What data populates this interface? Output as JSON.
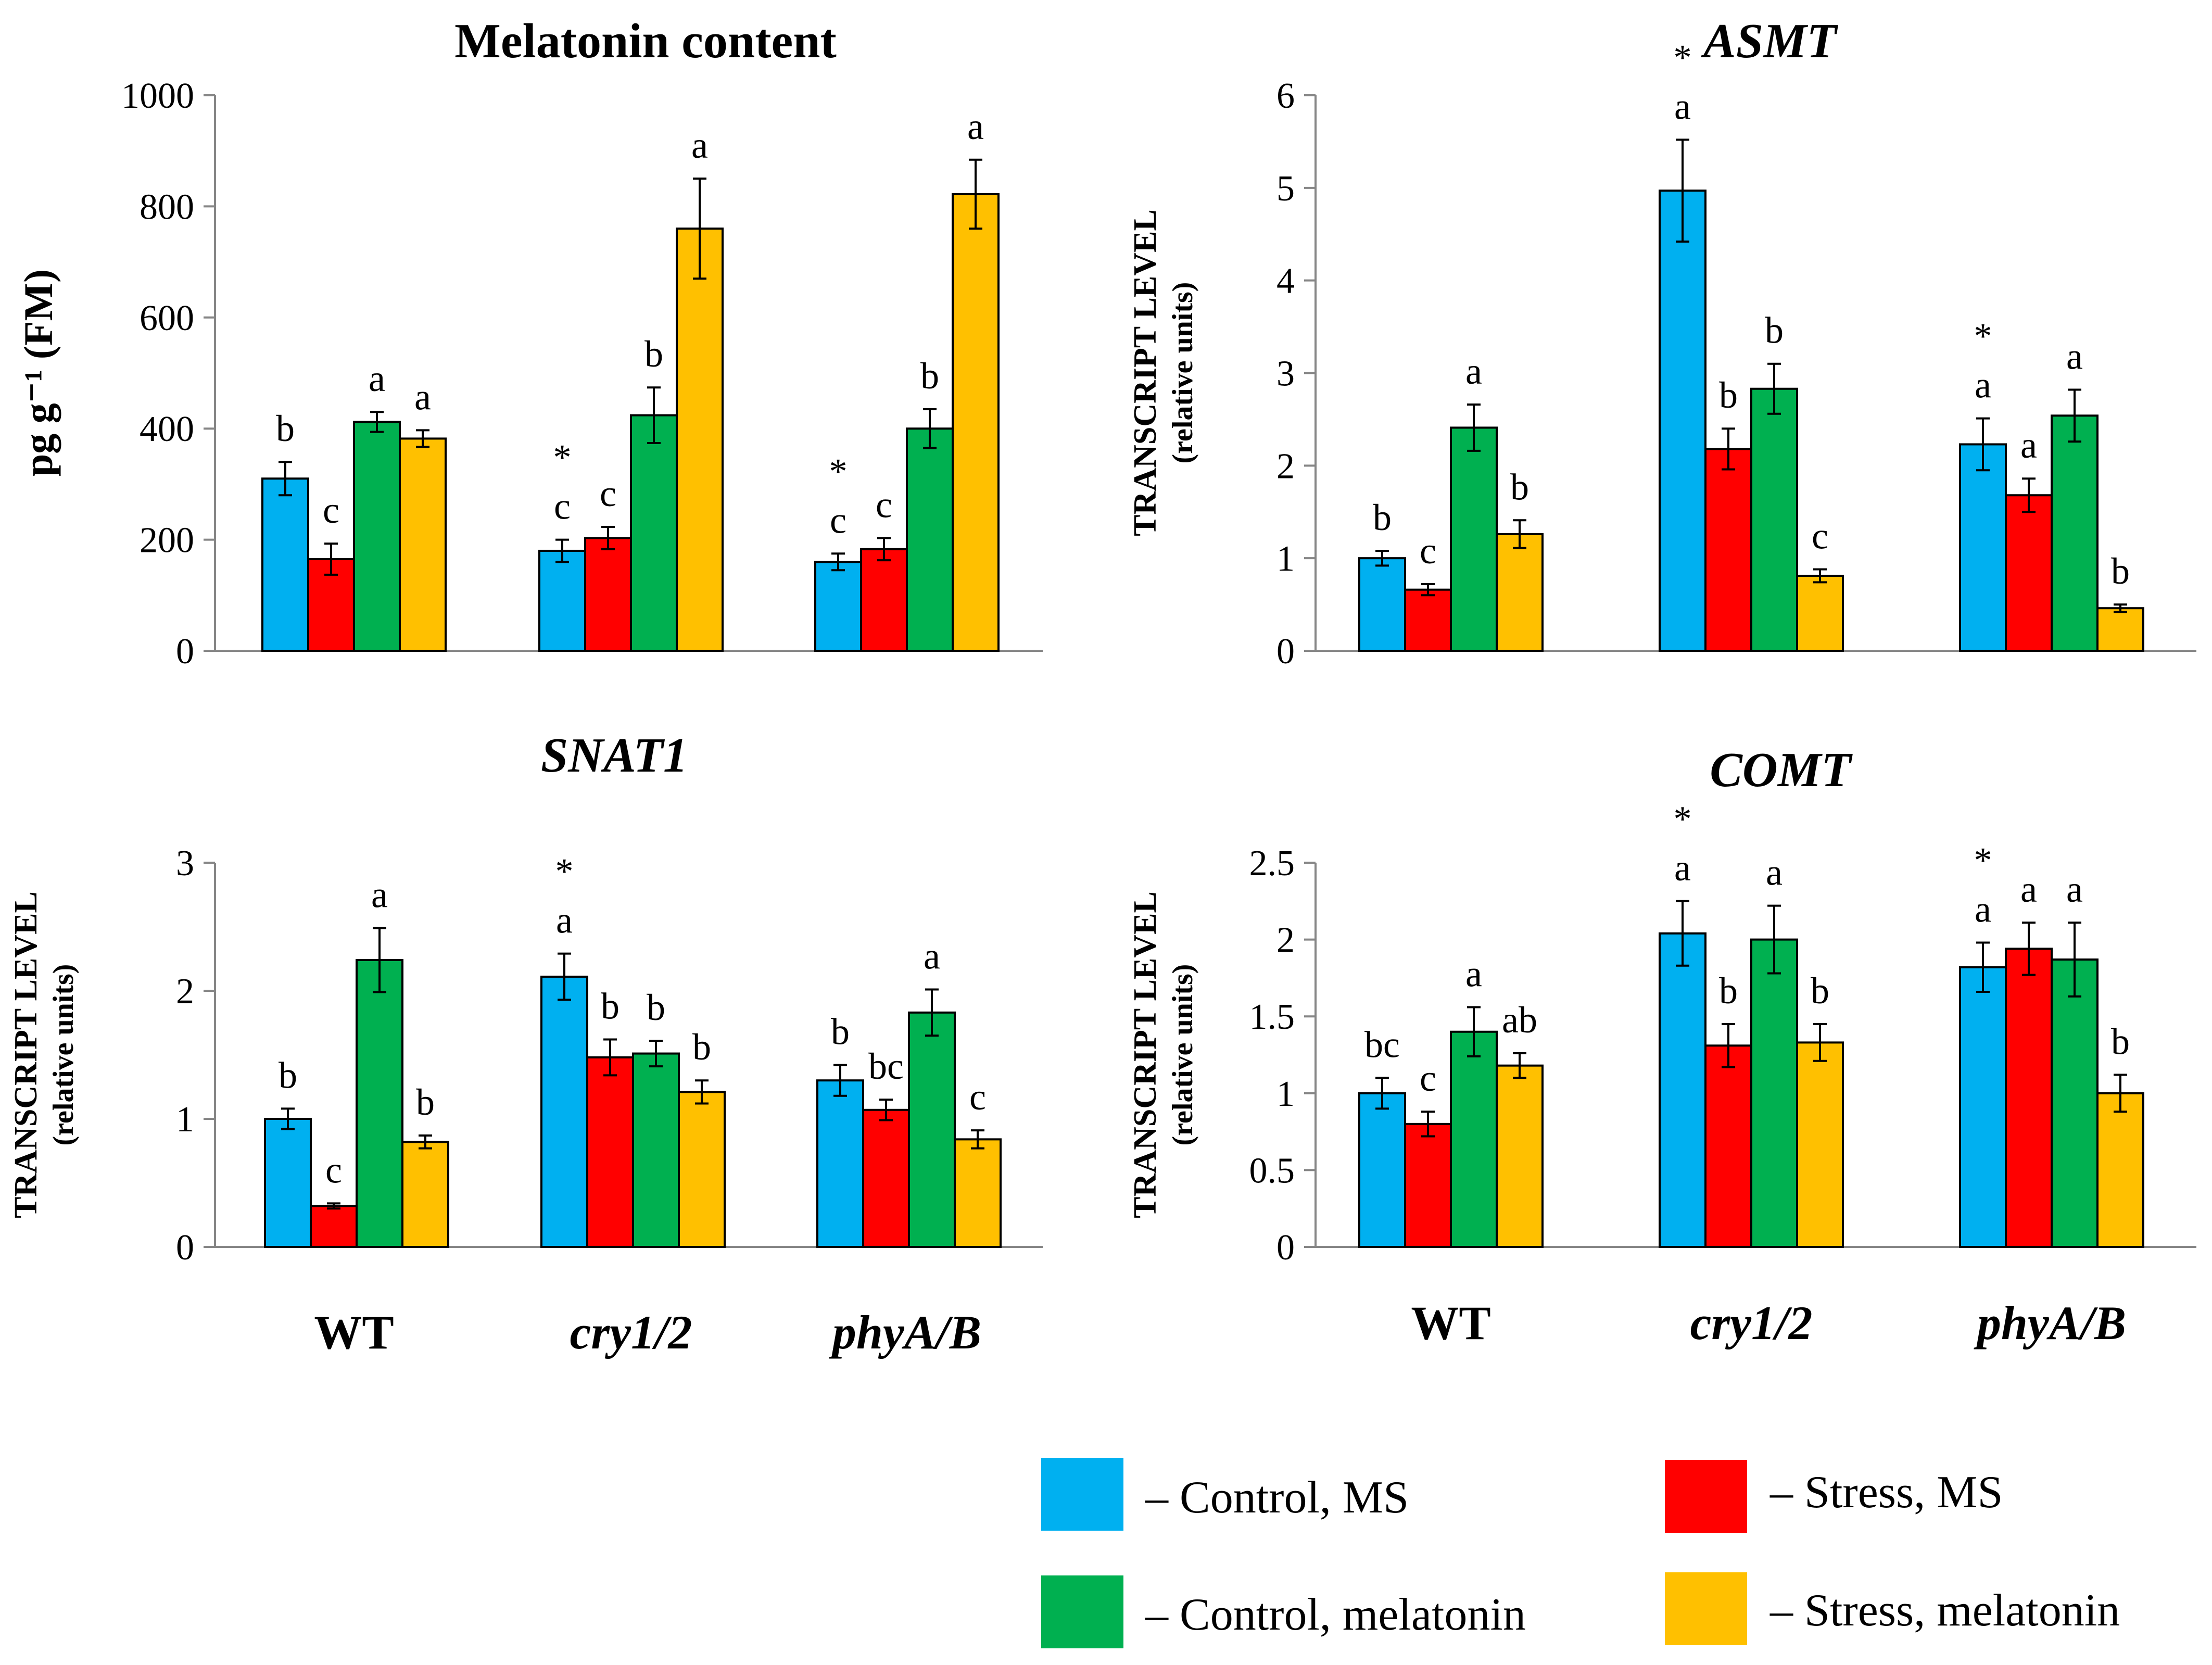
{
  "colors": {
    "control_ms": "#00B0F0",
    "stress_ms": "#FF0000",
    "control_melatonin": "#00B050",
    "stress_melatonin": "#FFC000"
  },
  "legend": [
    {
      "key": "control_ms",
      "label": "– Control, MS"
    },
    {
      "key": "stress_ms",
      "label": "– Stress, MS"
    },
    {
      "key": "control_melatonin",
      "label": "– Control, melatonin"
    },
    {
      "key": "stress_melatonin",
      "label": "– Stress, melatonin"
    }
  ],
  "group_labels": [
    {
      "label": "WT",
      "italic": false
    },
    {
      "label": "cry1/2",
      "italic": true
    },
    {
      "label": "phyA/B",
      "italic": true
    }
  ],
  "chart_data": [
    {
      "type": "bar",
      "title": "Melatonin content",
      "title_italic": false,
      "ylabel": "pg g⁻¹ (FM)",
      "ylabel_line2": "",
      "ylim": [
        0,
        1000
      ],
      "yticks": [
        "0",
        "200",
        "400",
        "600",
        "800",
        "1000"
      ],
      "categories": [
        "WT",
        "cry1/2",
        "phyA/B"
      ],
      "series": [
        {
          "name": "Control, MS",
          "color": "control_ms",
          "values": [
            310,
            180,
            160
          ],
          "errors": [
            30,
            20,
            15
          ],
          "letters": [
            "b",
            "c",
            "c"
          ],
          "stars": [
            false,
            true,
            true
          ]
        },
        {
          "name": "Stress, MS",
          "color": "stress_ms",
          "values": [
            165,
            203,
            183
          ],
          "errors": [
            28,
            20,
            20
          ],
          "letters": [
            "c",
            "c",
            "c"
          ],
          "stars": [
            false,
            false,
            false
          ]
        },
        {
          "name": "Control, melatonin",
          "color": "control_melatonin",
          "values": [
            412,
            424,
            400
          ],
          "errors": [
            18,
            50,
            35
          ],
          "letters": [
            "a",
            "b",
            "b"
          ],
          "stars": [
            false,
            false,
            false
          ]
        },
        {
          "name": "Stress, melatonin",
          "color": "stress_melatonin",
          "values": [
            382,
            760,
            822
          ],
          "errors": [
            15,
            90,
            62
          ],
          "letters": [
            "a",
            "a",
            "a"
          ],
          "stars": [
            false,
            false,
            false
          ]
        }
      ]
    },
    {
      "type": "bar",
      "title": "ASMT",
      "title_italic": true,
      "ylabel": "TRANSCRIPT LEVEL",
      "ylabel_line2": "(relative units)",
      "ylim": [
        0,
        6
      ],
      "yticks": [
        "0",
        "1",
        "2",
        "3",
        "4",
        "5",
        "6"
      ],
      "categories": [
        "WT",
        "cry1/2",
        "phyA/B"
      ],
      "series": [
        {
          "name": "Control, MS",
          "color": "control_ms",
          "values": [
            1.0,
            4.97,
            2.23
          ],
          "errors": [
            0.08,
            0.55,
            0.28
          ],
          "letters": [
            "b",
            "a",
            "a"
          ],
          "stars": [
            false,
            true,
            true
          ]
        },
        {
          "name": "Stress, MS",
          "color": "stress_ms",
          "values": [
            0.66,
            2.18,
            1.68
          ],
          "errors": [
            0.06,
            0.22,
            0.18
          ],
          "letters": [
            "c",
            "b",
            "a"
          ],
          "stars": [
            false,
            false,
            false
          ]
        },
        {
          "name": "Control, melatonin",
          "color": "control_melatonin",
          "values": [
            2.41,
            2.83,
            2.54
          ],
          "errors": [
            0.25,
            0.27,
            0.28
          ],
          "letters": [
            "a",
            "b",
            "a"
          ],
          "stars": [
            false,
            false,
            false
          ]
        },
        {
          "name": "Stress, melatonin",
          "color": "stress_melatonin",
          "values": [
            1.26,
            0.81,
            0.46
          ],
          "errors": [
            0.15,
            0.07,
            0.04
          ],
          "letters": [
            "b",
            "c",
            "b"
          ],
          "stars": [
            false,
            false,
            false
          ]
        }
      ]
    },
    {
      "type": "bar",
      "title": "SNAT1",
      "title_italic": true,
      "ylabel": "TRANSCRIPT LEVEL",
      "ylabel_line2": "(relative units)",
      "ylim": [
        0,
        3
      ],
      "yticks": [
        "0",
        "1",
        "2",
        "3"
      ],
      "categories": [
        "WT",
        "cry1/2",
        "phyA/B"
      ],
      "series": [
        {
          "name": "Control, MS",
          "color": "control_ms",
          "values": [
            1.0,
            2.11,
            1.3
          ],
          "errors": [
            0.08,
            0.18,
            0.12
          ],
          "letters": [
            "b",
            "a",
            "b"
          ],
          "stars": [
            false,
            true,
            false
          ]
        },
        {
          "name": "Stress, MS",
          "color": "stress_ms",
          "values": [
            0.32,
            1.48,
            1.07
          ],
          "errors": [
            0.02,
            0.14,
            0.08
          ],
          "letters": [
            "c",
            "b",
            "bc"
          ],
          "stars": [
            false,
            false,
            false
          ]
        },
        {
          "name": "Control, melatonin",
          "color": "control_melatonin",
          "values": [
            2.24,
            1.51,
            1.83
          ],
          "errors": [
            0.25,
            0.1,
            0.18
          ],
          "letters": [
            "a",
            "b",
            "a"
          ],
          "stars": [
            false,
            false,
            false
          ]
        },
        {
          "name": "Stress, melatonin",
          "color": "stress_melatonin",
          "values": [
            0.82,
            1.21,
            0.84
          ],
          "errors": [
            0.05,
            0.09,
            0.07
          ],
          "letters": [
            "b",
            "b",
            "c"
          ],
          "stars": [
            false,
            false,
            false
          ]
        }
      ]
    },
    {
      "type": "bar",
      "title": "COMT",
      "title_italic": true,
      "ylabel": "TRANSCRIPT LEVEL",
      "ylabel_line2": "(relative units)",
      "ylim": [
        0,
        2.5
      ],
      "yticks": [
        "0",
        "0.5",
        "1",
        "1.5",
        "2",
        "2.5"
      ],
      "categories": [
        "WT",
        "cry1/2",
        "phyA/B"
      ],
      "series": [
        {
          "name": "Control, MS",
          "color": "control_ms",
          "values": [
            1.0,
            2.04,
            1.82
          ],
          "errors": [
            0.1,
            0.21,
            0.16
          ],
          "letters": [
            "bc",
            "a",
            "a"
          ],
          "stars": [
            false,
            true,
            true
          ]
        },
        {
          "name": "Stress, MS",
          "color": "stress_ms",
          "values": [
            0.8,
            1.31,
            1.94
          ],
          "errors": [
            0.08,
            0.14,
            0.17
          ],
          "letters": [
            "c",
            "b",
            "a"
          ],
          "stars": [
            false,
            false,
            false
          ]
        },
        {
          "name": "Control, melatonin",
          "color": "control_melatonin",
          "values": [
            1.4,
            2.0,
            1.87
          ],
          "errors": [
            0.16,
            0.22,
            0.24
          ],
          "letters": [
            "a",
            "a",
            "a"
          ],
          "stars": [
            false,
            false,
            false
          ]
        },
        {
          "name": "Stress, melatonin",
          "color": "stress_melatonin",
          "values": [
            1.18,
            1.33,
            1.0
          ],
          "errors": [
            0.08,
            0.12,
            0.12
          ],
          "letters": [
            "ab",
            "b",
            "b"
          ],
          "stars": [
            false,
            false,
            false
          ]
        }
      ]
    }
  ]
}
